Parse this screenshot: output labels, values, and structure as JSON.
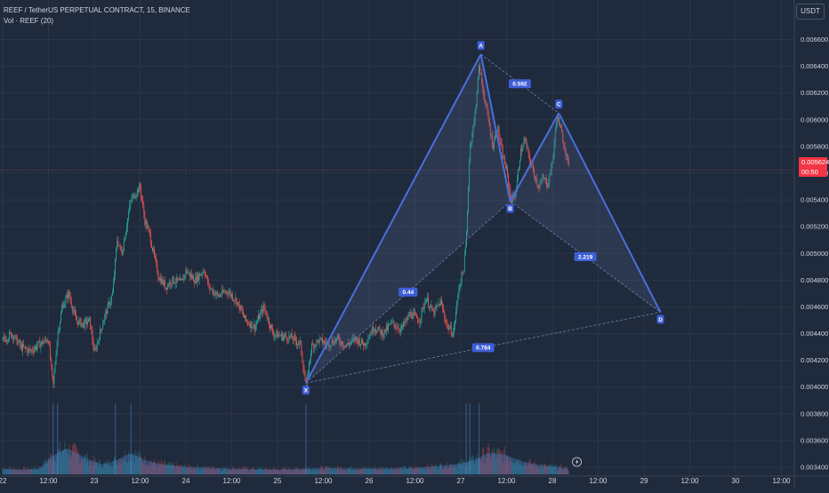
{
  "header": {
    "symbol_line": "REEF / TetherUS PERPETUAL CONTRACT, 15, BINANCE",
    "volume_line": "Vol · REEF (20)",
    "currency": "USDT"
  },
  "price_tag": {
    "price": "0.005624",
    "countdown": "00:50",
    "color": "#f23645"
  },
  "colors": {
    "background": "#1f2a3c",
    "up": "#26a69a",
    "down": "#ef5350",
    "pattern": "#4a6fdc"
  },
  "chart_data": {
    "type": "candlestick",
    "y_range": [
      0.00334,
      0.00671
    ],
    "price_ticks": [
      "0.006600",
      "0.006400",
      "0.006200",
      "0.006000",
      "0.005800",
      "0.005600",
      "0.005400",
      "0.005200",
      "0.005000",
      "0.004800",
      "0.004600",
      "0.004400",
      "0.004200",
      "0.004000",
      "0.003800",
      "0.003600",
      "0.003400"
    ],
    "time_labels": [
      "22",
      "12:00",
      "23",
      "12:00",
      "24",
      "12:00",
      "25",
      "12:00",
      "26",
      "12:00",
      "27",
      "12:00",
      "28",
      "12:00",
      "29",
      "12:00",
      "30",
      "12:00"
    ],
    "x_range": [
      0,
      8.64
    ],
    "time_positions": [
      0,
      0.5,
      1,
      1.5,
      2,
      2.5,
      3,
      3.5,
      4,
      4.5,
      5,
      5.5,
      6,
      6.5,
      7,
      7.5,
      8,
      8.5
    ],
    "last_price": 0.005624,
    "price_path": [
      [
        0.0,
        0.00435
      ],
      [
        0.1,
        0.0044
      ],
      [
        0.2,
        0.0043
      ],
      [
        0.3,
        0.00427
      ],
      [
        0.4,
        0.00432
      ],
      [
        0.5,
        0.00436
      ],
      [
        0.55,
        0.004
      ],
      [
        0.6,
        0.0044
      ],
      [
        0.65,
        0.0046
      ],
      [
        0.72,
        0.0047
      ],
      [
        0.8,
        0.0045
      ],
      [
        0.88,
        0.00447
      ],
      [
        0.95,
        0.0045
      ],
      [
        1.0,
        0.00425
      ],
      [
        1.1,
        0.0045
      ],
      [
        1.2,
        0.0047
      ],
      [
        1.25,
        0.0051
      ],
      [
        1.3,
        0.005
      ],
      [
        1.35,
        0.0052
      ],
      [
        1.4,
        0.0054
      ],
      [
        1.45,
        0.00545
      ],
      [
        1.5,
        0.0055
      ],
      [
        1.55,
        0.00525
      ],
      [
        1.6,
        0.00515
      ],
      [
        1.7,
        0.00483
      ],
      [
        1.78,
        0.00475
      ],
      [
        1.85,
        0.0048
      ],
      [
        1.95,
        0.00478
      ],
      [
        2.0,
        0.00487
      ],
      [
        2.1,
        0.0048
      ],
      [
        2.2,
        0.00488
      ],
      [
        2.25,
        0.00475
      ],
      [
        2.35,
        0.00468
      ],
      [
        2.45,
        0.00472
      ],
      [
        2.55,
        0.00465
      ],
      [
        2.65,
        0.0045
      ],
      [
        2.75,
        0.00445
      ],
      [
        2.85,
        0.0046
      ],
      [
        2.95,
        0.0044
      ],
      [
        3.05,
        0.00438
      ],
      [
        3.15,
        0.00437
      ],
      [
        3.25,
        0.00432
      ],
      [
        3.31,
        0.004
      ],
      [
        3.37,
        0.0043
      ],
      [
        3.45,
        0.00435
      ],
      [
        3.55,
        0.00432
      ],
      [
        3.65,
        0.00436
      ],
      [
        3.75,
        0.00431
      ],
      [
        3.85,
        0.00436
      ],
      [
        3.95,
        0.00432
      ],
      [
        4.05,
        0.00445
      ],
      [
        4.15,
        0.0044
      ],
      [
        4.25,
        0.00448
      ],
      [
        4.35,
        0.00443
      ],
      [
        4.45,
        0.00455
      ],
      [
        4.55,
        0.0045
      ],
      [
        4.62,
        0.00467
      ],
      [
        4.7,
        0.00455
      ],
      [
        4.78,
        0.00464
      ],
      [
        4.85,
        0.00446
      ],
      [
        4.92,
        0.0044
      ],
      [
        4.98,
        0.00475
      ],
      [
        5.03,
        0.00488
      ],
      [
        5.06,
        0.0051
      ],
      [
        5.1,
        0.0058
      ],
      [
        5.15,
        0.006
      ],
      [
        5.2,
        0.0064
      ],
      [
        5.25,
        0.0062
      ],
      [
        5.3,
        0.006
      ],
      [
        5.35,
        0.0058
      ],
      [
        5.4,
        0.00595
      ],
      [
        5.45,
        0.00575
      ],
      [
        5.5,
        0.00562
      ],
      [
        5.55,
        0.0054
      ],
      [
        5.6,
        0.00545
      ],
      [
        5.65,
        0.00575
      ],
      [
        5.7,
        0.00585
      ],
      [
        5.75,
        0.0057
      ],
      [
        5.8,
        0.0056
      ],
      [
        5.85,
        0.0055
      ],
      [
        5.9,
        0.00556
      ],
      [
        5.95,
        0.00552
      ],
      [
        6.0,
        0.00568
      ],
      [
        6.05,
        0.00603
      ],
      [
        6.1,
        0.0059
      ],
      [
        6.15,
        0.00575
      ],
      [
        6.18,
        0.00562
      ]
    ],
    "volume_profile": [
      [
        0.0,
        0.12
      ],
      [
        0.2,
        0.1
      ],
      [
        0.4,
        0.12
      ],
      [
        0.55,
        0.4
      ],
      [
        0.6,
        0.45
      ],
      [
        0.7,
        0.55
      ],
      [
        0.8,
        0.45
      ],
      [
        0.95,
        0.3
      ],
      [
        1.1,
        0.2
      ],
      [
        1.25,
        0.3
      ],
      [
        1.4,
        0.45
      ],
      [
        1.55,
        0.3
      ],
      [
        1.7,
        0.22
      ],
      [
        2.0,
        0.15
      ],
      [
        2.5,
        0.12
      ],
      [
        3.0,
        0.1
      ],
      [
        3.3,
        0.12
      ],
      [
        3.6,
        0.13
      ],
      [
        4.0,
        0.12
      ],
      [
        4.5,
        0.13
      ],
      [
        5.0,
        0.22
      ],
      [
        5.15,
        0.3
      ],
      [
        5.3,
        0.45
      ],
      [
        5.5,
        0.4
      ],
      [
        5.7,
        0.25
      ],
      [
        5.9,
        0.18
      ],
      [
        6.1,
        0.14
      ],
      [
        6.18,
        0.12
      ]
    ],
    "harmonic_pattern": {
      "points": [
        {
          "label": "X",
          "t": 3.31,
          "price": 0.00403
        },
        {
          "label": "A",
          "t": 5.22,
          "price": 0.00649
        },
        {
          "label": "B",
          "t": 5.54,
          "price": 0.00539
        },
        {
          "label": "C",
          "t": 6.07,
          "price": 0.00605
        },
        {
          "label": "D",
          "t": 7.18,
          "price": 0.00456
        }
      ],
      "ratios": [
        {
          "text": "0.44",
          "from": "X",
          "to": "B"
        },
        {
          "text": "0.592",
          "from": "A",
          "to": "C"
        },
        {
          "text": "2.219",
          "from": "B",
          "to": "D"
        },
        {
          "text": "0.784",
          "from": "X",
          "to": "D"
        }
      ]
    }
  }
}
